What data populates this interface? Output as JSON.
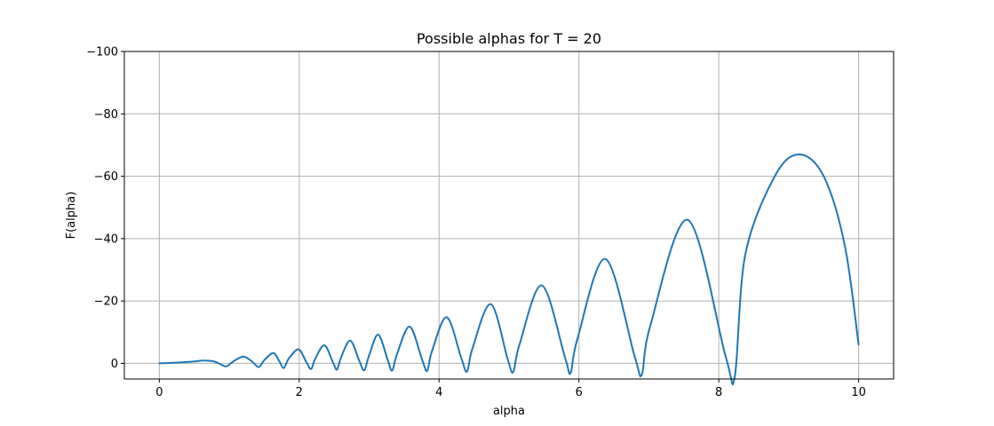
{
  "chart_data": {
    "type": "line",
    "title": "Possible alphas for T = 20",
    "xlabel": "alpha",
    "ylabel": "F(alpha)",
    "xlim": [
      -0.5,
      10.5
    ],
    "ylim": [
      5,
      -100
    ],
    "y_inverted": true,
    "grid": true,
    "xticks": [
      0,
      2,
      4,
      6,
      8,
      10
    ],
    "xtick_labels": [
      "0",
      "2",
      "4",
      "6",
      "8",
      "10"
    ],
    "yticks": [
      -100,
      -80,
      -60,
      -40,
      -20,
      0
    ],
    "ytick_labels": [
      "−100",
      "−80",
      "−60",
      "−40",
      "−20",
      "0"
    ],
    "line_color": "#1f77b4",
    "grid_color": "#b0b0b0",
    "series": [
      {
        "x": [
          0,
          0.3,
          0.5,
          0.65,
          0.8,
          0.95,
          1.05,
          1.2,
          1.33,
          1.42,
          1.5,
          1.63,
          1.72,
          1.78,
          1.85,
          1.99,
          2.1,
          2.17,
          2.23,
          2.36,
          2.48,
          2.54,
          2.6,
          2.73,
          2.86,
          2.93,
          3.0,
          3.13,
          3.27,
          3.33,
          3.4,
          3.58,
          3.76,
          3.83,
          3.9,
          4.11,
          4.32,
          4.4,
          4.48,
          4.74,
          4.98,
          5.06,
          5.15,
          5.47,
          5.8,
          5.88,
          5.98,
          6.38,
          6.8,
          6.9,
          7.02,
          7.56,
          8.1,
          8.23,
          8.38,
          8.8,
          9.15,
          9.5,
          9.8,
          10.0
        ],
        "y": [
          0,
          -0.3,
          -0.6,
          -0.9,
          -0.5,
          1.0,
          -0.5,
          -2.2,
          -0.5,
          1.2,
          -1.0,
          -3.3,
          -0.5,
          1.5,
          -1.5,
          -4.5,
          -0.5,
          1.8,
          -1.5,
          -5.8,
          -0.5,
          2.0,
          -2.0,
          -7.3,
          -0.8,
          2.2,
          -2.5,
          -9.2,
          -0.8,
          2.3,
          -3.0,
          -11.8,
          -1.0,
          2.4,
          -4.0,
          -14.8,
          -1.5,
          2.6,
          -5.0,
          -19.0,
          -1.5,
          2.8,
          -6.0,
          -25.0,
          -2.0,
          3.1,
          -8.0,
          -33.5,
          -2.0,
          3.5,
          -12.0,
          -46.0,
          -2.0,
          4.0,
          -35.0,
          -60.0,
          -67.0,
          -60.0,
          -38.0,
          -6.0
        ]
      }
    ]
  }
}
